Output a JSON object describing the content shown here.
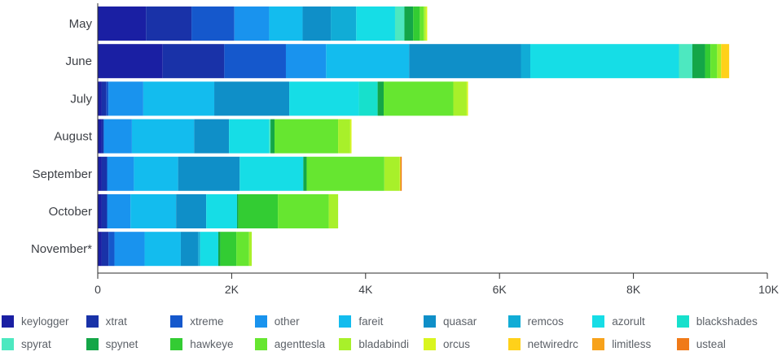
{
  "chart_data": {
    "type": "bar",
    "orientation": "horizontal",
    "stacked": true,
    "categories": [
      "May",
      "June",
      "July",
      "August",
      "September",
      "October",
      "November*"
    ],
    "xlim": [
      0,
      10000
    ],
    "xticks": [
      0,
      2000,
      4000,
      6000,
      8000,
      10000
    ],
    "xtick_labels": [
      "0",
      "2K",
      "4K",
      "6K",
      "8K",
      "10K"
    ],
    "grid": false,
    "legend_position": "bottom",
    "series": [
      {
        "name": "keylogger",
        "color": "#1a1fa3",
        "values": [
          720,
          970,
          60,
          60,
          60,
          60,
          60
        ]
      },
      {
        "name": "xtrat",
        "color": "#1932a8",
        "values": [
          680,
          920,
          70,
          30,
          80,
          80,
          100
        ]
      },
      {
        "name": "xtreme",
        "color": "#1558cc",
        "values": [
          640,
          920,
          30,
          0,
          0,
          0,
          90
        ]
      },
      {
        "name": "other",
        "color": "#1993ee",
        "values": [
          520,
          600,
          520,
          420,
          400,
          350,
          450
        ]
      },
      {
        "name": "fareit",
        "color": "#13bcee",
        "values": [
          500,
          1240,
          1060,
          930,
          660,
          680,
          540
        ]
      },
      {
        "name": "quasar",
        "color": "#0f8fc8",
        "values": [
          420,
          1670,
          1120,
          520,
          920,
          450,
          260
        ]
      },
      {
        "name": "remcos",
        "color": "#11acd6",
        "values": [
          380,
          140,
          0,
          0,
          0,
          0,
          30
        ]
      },
      {
        "name": "azorult",
        "color": "#16dde6",
        "values": [
          580,
          2220,
          1040,
          600,
          950,
          460,
          270
        ]
      },
      {
        "name": "blackshades",
        "color": "#17e0cc",
        "values": [
          0,
          0,
          280,
          0,
          0,
          0,
          0
        ]
      },
      {
        "name": "spyrat",
        "color": "#4de8c0",
        "values": [
          140,
          200,
          0,
          20,
          0,
          0,
          0
        ]
      },
      {
        "name": "spynet",
        "color": "#14a648",
        "values": [
          130,
          190,
          90,
          60,
          50,
          20,
          30
        ]
      },
      {
        "name": "hawkeye",
        "color": "#33cc33",
        "values": [
          100,
          80,
          0,
          0,
          0,
          590,
          240
        ]
      },
      {
        "name": "agenttesla",
        "color": "#66e630",
        "values": [
          60,
          100,
          1040,
          950,
          1160,
          760,
          190
        ]
      },
      {
        "name": "bladabindi",
        "color": "#a8f02a",
        "values": [
          30,
          60,
          200,
          180,
          230,
          140,
          40
        ]
      },
      {
        "name": "orcus",
        "color": "#d9f51f",
        "values": [
          20,
          0,
          20,
          20,
          10,
          0,
          0
        ]
      },
      {
        "name": "netwiredrc",
        "color": "#ffd11a",
        "values": [
          0,
          120,
          0,
          0,
          0,
          0,
          0
        ]
      },
      {
        "name": "limitless",
        "color": "#f7a21b",
        "values": [
          0,
          0,
          0,
          0,
          0,
          0,
          0
        ]
      },
      {
        "name": "usteal",
        "color": "#f07a18",
        "values": [
          0,
          0,
          0,
          0,
          20,
          0,
          0
        ]
      }
    ]
  }
}
